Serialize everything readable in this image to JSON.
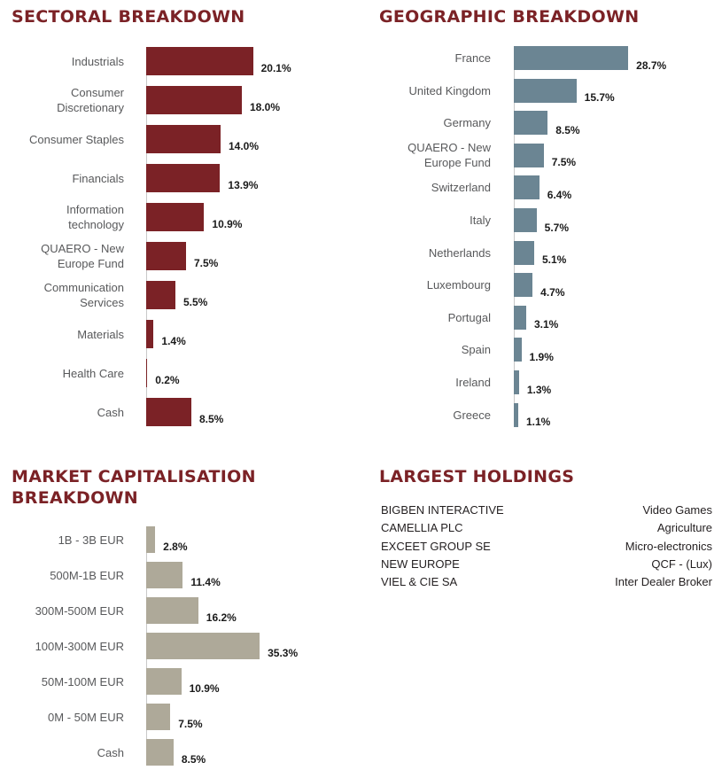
{
  "colors": {
    "title": "#7b2226",
    "sector_bar": "#7b2226",
    "geo_bar": "#6b8593",
    "cap_bar": "#aea999"
  },
  "sectoral": {
    "title": "SECTORAL BREAKDOWN"
  },
  "geographic": {
    "title": "GEOGRAPHIC BREAKDOWN"
  },
  "market_cap": {
    "title_line1": "MARKET CAPITALISATION",
    "title_line2": "BREAKDOWN"
  },
  "holdings": {
    "title": "LARGEST HOLDINGS",
    "rows": [
      {
        "name": "BIGBEN INTERACTIVE",
        "sector": "Video Games"
      },
      {
        "name": "CAMELLIA PLC",
        "sector": "Agriculture"
      },
      {
        "name": "EXCEET GROUP SE",
        "sector": "Micro-electronics"
      },
      {
        "name": "NEW EUROPE",
        "sector": "QCF - (Lux)"
      },
      {
        "name": "VIEL & CIE SA",
        "sector": "Inter Dealer Broker"
      }
    ]
  },
  "chart_data": [
    {
      "id": "sectoral",
      "type": "bar",
      "orientation": "horizontal",
      "title": "SECTORAL BREAKDOWN",
      "categories": [
        [
          "Industrials"
        ],
        [
          "Consumer",
          "Discretionary"
        ],
        [
          "Consumer Staples"
        ],
        [
          "Financials"
        ],
        [
          "Information",
          "technology"
        ],
        [
          "QUAERO - New",
          "Europe Fund"
        ],
        [
          "Communication",
          "Services"
        ],
        [
          "Materials"
        ],
        [
          "Health Care"
        ],
        [
          "Cash"
        ]
      ],
      "values": [
        20.1,
        18.0,
        14.0,
        13.9,
        10.9,
        7.5,
        5.5,
        1.4,
        0.2,
        8.5
      ],
      "labels": [
        "20.1%",
        "18.0%",
        "14.0%",
        "13.9%",
        "10.9%",
        "7.5%",
        "5.5%",
        "1.4%",
        "0.2%",
        "8.5%"
      ],
      "unit": "%"
    },
    {
      "id": "geographic",
      "type": "bar",
      "orientation": "horizontal",
      "title": "GEOGRAPHIC BREAKDOWN",
      "categories": [
        [
          "France"
        ],
        [
          "United Kingdom"
        ],
        [
          "Germany"
        ],
        [
          "QUAERO - New",
          "Europe Fund"
        ],
        [
          "Switzerland"
        ],
        [
          "Italy"
        ],
        [
          "Netherlands"
        ],
        [
          "Luxembourg"
        ],
        [
          "Portugal"
        ],
        [
          "Spain"
        ],
        [
          "Ireland"
        ],
        [
          "Greece"
        ]
      ],
      "values": [
        28.7,
        15.7,
        8.5,
        7.5,
        6.4,
        5.7,
        5.1,
        4.7,
        3.1,
        1.9,
        1.3,
        1.1
      ],
      "labels": [
        "28.7%",
        "15.7%",
        "8.5%",
        "7.5%",
        "6.4%",
        "5.7%",
        "5.1%",
        "4.7%",
        "3.1%",
        "1.9%",
        "1.3%",
        "1.1%"
      ],
      "unit": "%"
    },
    {
      "id": "market_cap",
      "type": "bar",
      "orientation": "horizontal",
      "title": "MARKET CAPITALISATION BREAKDOWN",
      "categories": [
        [
          "1B - 3B EUR"
        ],
        [
          "500M-1B EUR"
        ],
        [
          "300M-500M EUR"
        ],
        [
          "100M-300M EUR"
        ],
        [
          "50M-100M EUR"
        ],
        [
          "0M - 50M EUR"
        ],
        [
          "Cash"
        ]
      ],
      "values": [
        2.8,
        11.4,
        16.2,
        35.3,
        10.9,
        7.5,
        8.5
      ],
      "labels": [
        "2.8%",
        "11.4%",
        "16.2%",
        "35.3%",
        "10.9%",
        "7.5%",
        "8.5%"
      ],
      "unit": "%"
    }
  ]
}
